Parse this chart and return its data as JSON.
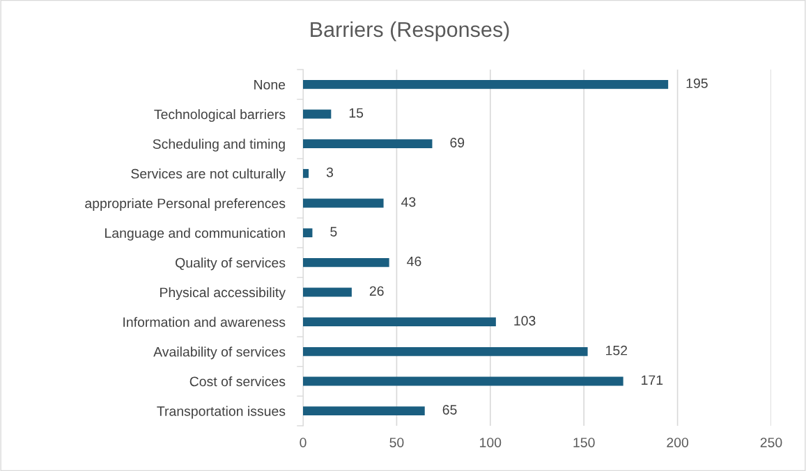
{
  "chart_data": {
    "type": "bar",
    "orientation": "horizontal",
    "title": "Barriers (Responses)",
    "categories": [
      "None",
      "Technological barriers",
      "Scheduling and timing",
      "Services are not culturally",
      "appropriate Personal preferences",
      "Language and communication",
      "Quality of services",
      "Physical accessibility",
      "Information and awareness",
      "Availability of services",
      "Cost of services",
      "Transportation issues"
    ],
    "values": [
      195,
      15,
      69,
      3,
      43,
      5,
      46,
      26,
      103,
      152,
      171,
      65
    ],
    "color": "#1a5e80",
    "xlim": [
      0,
      250
    ],
    "xticks": [
      0,
      50,
      100,
      150,
      200,
      250
    ],
    "grid": "x",
    "data_labels": true
  }
}
